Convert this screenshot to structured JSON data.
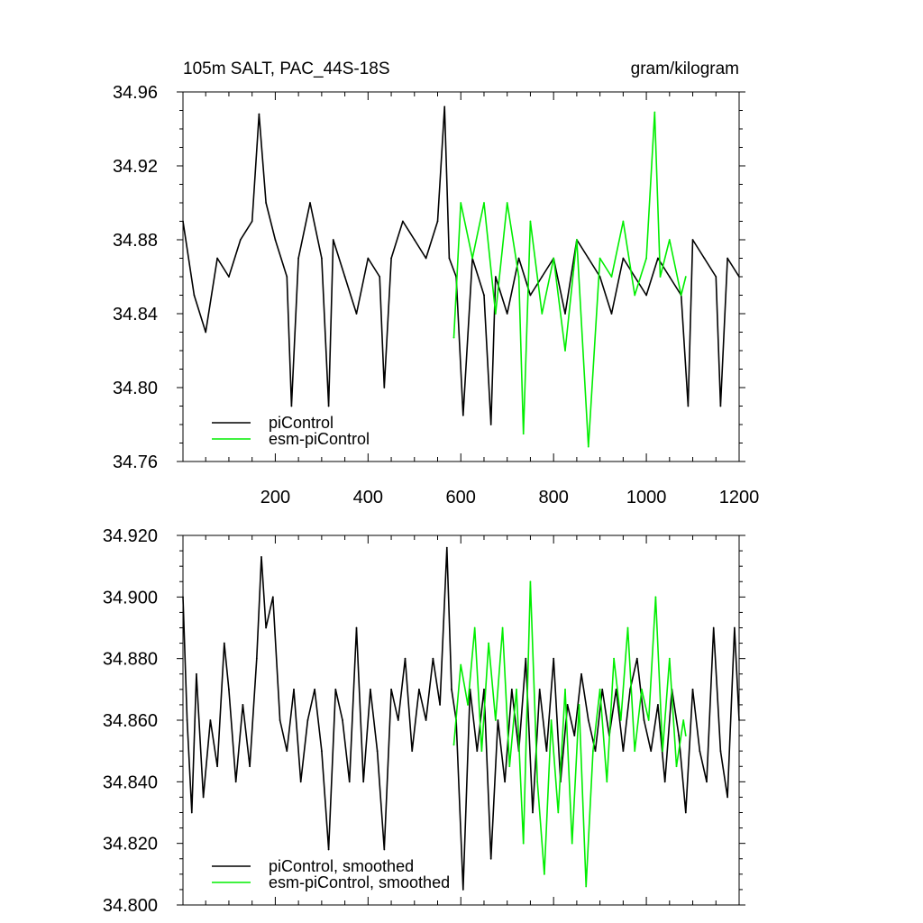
{
  "chart_data": [
    {
      "type": "line",
      "title": "105m SALT, PAC_44S-18S",
      "units": "gram/kilogram",
      "xlabel": "",
      "ylabel": "",
      "xlim": [
        1,
        1200
      ],
      "ylim": [
        34.76,
        34.96
      ],
      "x_ticks": [
        "200",
        "400",
        "600",
        "800",
        "1000",
        "1200"
      ],
      "y_ticks": [
        "34.76",
        "34.80",
        "34.84",
        "34.88",
        "34.92",
        "34.96"
      ],
      "grid": false,
      "legend_position": "bottom-left",
      "colors": {
        "piControl": "#000000",
        "esm-piControl": "#00ee00"
      },
      "series": [
        {
          "name": "piControl",
          "x": [
            1,
            25,
            50,
            75,
            100,
            125,
            150,
            165,
            180,
            200,
            225,
            235,
            250,
            275,
            300,
            315,
            325,
            350,
            375,
            400,
            425,
            435,
            450,
            475,
            500,
            525,
            550,
            565,
            575,
            590,
            605,
            625,
            650,
            665,
            675,
            700,
            725,
            750,
            775,
            800,
            825,
            850,
            875,
            900,
            925,
            950,
            975,
            1000,
            1025,
            1050,
            1075,
            1090,
            1100,
            1125,
            1150,
            1160,
            1175,
            1200
          ],
          "values": [
            34.89,
            34.85,
            34.83,
            34.87,
            34.86,
            34.88,
            34.89,
            34.948,
            34.9,
            34.88,
            34.86,
            34.79,
            34.87,
            34.9,
            34.87,
            34.79,
            34.88,
            34.86,
            34.84,
            34.87,
            34.86,
            34.8,
            34.87,
            34.89,
            34.88,
            34.87,
            34.89,
            34.952,
            34.87,
            34.86,
            34.785,
            34.87,
            34.85,
            34.78,
            34.86,
            34.84,
            34.87,
            34.85,
            34.86,
            34.87,
            34.84,
            34.88,
            34.87,
            34.86,
            34.84,
            34.87,
            34.86,
            34.85,
            34.87,
            34.86,
            34.85,
            34.79,
            34.88,
            34.87,
            34.86,
            34.79,
            34.87,
            34.86
          ]
        },
        {
          "name": "esm-piControl",
          "x": [
            585,
            600,
            625,
            650,
            675,
            700,
            725,
            735,
            750,
            775,
            800,
            825,
            850,
            875,
            900,
            925,
            950,
            975,
            1000,
            1018,
            1030,
            1050,
            1075,
            1085
          ],
          "values": [
            34.827,
            34.9,
            34.87,
            34.9,
            34.84,
            34.9,
            34.86,
            34.775,
            34.89,
            34.84,
            34.87,
            34.82,
            34.88,
            34.768,
            34.87,
            34.86,
            34.89,
            34.85,
            34.87,
            34.949,
            34.86,
            34.88,
            34.85,
            34.86
          ]
        }
      ]
    },
    {
      "type": "line",
      "title": "",
      "xlabel": "",
      "ylabel": "",
      "xlim": [
        1,
        1200
      ],
      "ylim": [
        34.8,
        34.92
      ],
      "y_ticks": [
        "34.800",
        "34.820",
        "34.840",
        "34.860",
        "34.880",
        "34.900",
        "34.920"
      ],
      "grid": false,
      "legend_position": "bottom-left",
      "colors": {
        "piControl, smoothed": "#000000",
        "esm-piControl, smoothed": "#00ee00"
      },
      "series": [
        {
          "name": "piControl, smoothed",
          "x": [
            1,
            10,
            20,
            30,
            45,
            60,
            75,
            90,
            100,
            115,
            130,
            145,
            160,
            170,
            180,
            195,
            210,
            225,
            240,
            255,
            270,
            285,
            300,
            315,
            330,
            345,
            360,
            375,
            390,
            405,
            420,
            435,
            450,
            465,
            480,
            495,
            510,
            525,
            540,
            555,
            570,
            580,
            590,
            605,
            620,
            635,
            650,
            665,
            680,
            695,
            710,
            725,
            740,
            755,
            770,
            785,
            800,
            815,
            830,
            845,
            860,
            875,
            890,
            905,
            920,
            935,
            950,
            965,
            980,
            995,
            1010,
            1025,
            1040,
            1055,
            1070,
            1085,
            1100,
            1115,
            1130,
            1145,
            1160,
            1175,
            1190,
            1200
          ],
          "values": [
            34.9,
            34.86,
            34.83,
            34.875,
            34.835,
            34.86,
            34.845,
            34.885,
            34.87,
            34.84,
            34.865,
            34.845,
            34.88,
            34.913,
            34.89,
            34.9,
            34.86,
            34.85,
            34.87,
            34.84,
            34.86,
            34.87,
            34.85,
            34.818,
            34.87,
            34.86,
            34.84,
            34.89,
            34.84,
            34.87,
            34.85,
            34.818,
            34.87,
            34.86,
            34.88,
            34.85,
            34.87,
            34.86,
            34.88,
            34.865,
            34.916,
            34.87,
            34.86,
            34.805,
            34.87,
            34.85,
            34.87,
            34.815,
            34.86,
            34.84,
            34.87,
            34.85,
            34.88,
            34.83,
            34.87,
            34.85,
            34.88,
            34.84,
            34.865,
            34.855,
            34.875,
            34.86,
            34.85,
            34.87,
            34.855,
            34.87,
            34.85,
            34.87,
            34.88,
            34.86,
            34.85,
            34.865,
            34.84,
            34.87,
            34.855,
            34.83,
            34.87,
            34.85,
            34.84,
            34.89,
            34.85,
            34.835,
            34.89,
            34.86
          ]
        },
        {
          "name": "esm-piControl, smoothed",
          "x": [
            585,
            600,
            615,
            630,
            645,
            660,
            675,
            690,
            705,
            720,
            735,
            750,
            765,
            780,
            795,
            810,
            825,
            840,
            855,
            870,
            885,
            900,
            915,
            930,
            945,
            960,
            975,
            990,
            1005,
            1020,
            1035,
            1050,
            1065,
            1080,
            1085
          ],
          "values": [
            34.852,
            34.878,
            34.865,
            34.89,
            34.85,
            34.885,
            34.86,
            34.89,
            34.845,
            34.87,
            34.82,
            34.905,
            34.84,
            34.81,
            34.86,
            34.83,
            34.87,
            34.82,
            34.865,
            34.806,
            34.85,
            34.87,
            34.84,
            34.88,
            34.86,
            34.89,
            34.85,
            34.87,
            34.86,
            34.9,
            34.85,
            34.88,
            34.845,
            34.86,
            34.855
          ]
        }
      ]
    }
  ]
}
